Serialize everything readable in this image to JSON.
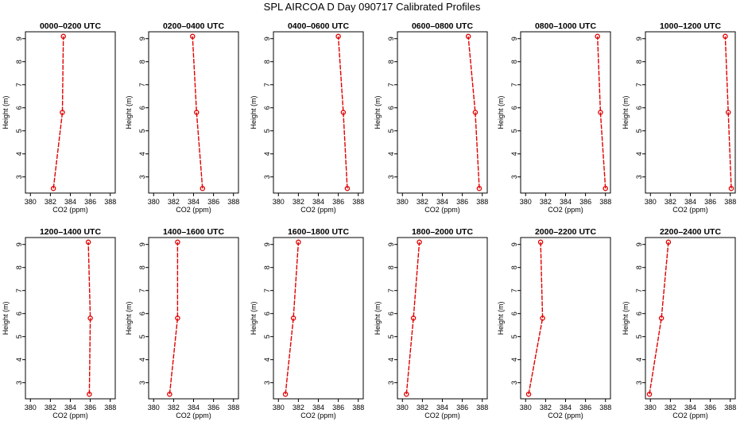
{
  "figure": {
    "title": "SPL AIRCOA D  Day 090717  Calibrated Profiles",
    "series_color": "#e00000"
  },
  "chart_data": [
    {
      "type": "line",
      "title": "0000–0200 UTC",
      "xlabel": "CO2 (ppm)",
      "ylabel": "Height (m)",
      "xlim": [
        379.5,
        388.5
      ],
      "ylim": [
        2.3,
        9.3
      ],
      "xticks": [
        380,
        382,
        384,
        386,
        388
      ],
      "yticks": [
        3,
        4,
        5,
        6,
        7,
        8,
        9
      ],
      "points": [
        {
          "x": 382.3,
          "y": 2.5
        },
        {
          "x": 383.2,
          "y": 5.8
        },
        {
          "x": 383.3,
          "y": 9.1
        }
      ]
    },
    {
      "type": "line",
      "title": "0200–0400 UTC",
      "xlabel": "CO2 (ppm)",
      "ylabel": "Height (m)",
      "xlim": [
        379.5,
        388.5
      ],
      "ylim": [
        2.3,
        9.3
      ],
      "xticks": [
        380,
        382,
        384,
        386,
        388
      ],
      "yticks": [
        3,
        4,
        5,
        6,
        7,
        8,
        9
      ],
      "points": [
        {
          "x": 384.9,
          "y": 2.5
        },
        {
          "x": 384.3,
          "y": 5.8
        },
        {
          "x": 383.9,
          "y": 9.1
        }
      ]
    },
    {
      "type": "line",
      "title": "0400–0600 UTC",
      "xlabel": "CO2 (ppm)",
      "ylabel": "Height (m)",
      "xlim": [
        379.5,
        388.5
      ],
      "ylim": [
        2.3,
        9.3
      ],
      "xticks": [
        380,
        382,
        384,
        386,
        388
      ],
      "yticks": [
        3,
        4,
        5,
        6,
        7,
        8,
        9
      ],
      "points": [
        {
          "x": 386.9,
          "y": 2.5
        },
        {
          "x": 386.5,
          "y": 5.8
        },
        {
          "x": 386.0,
          "y": 9.1
        }
      ]
    },
    {
      "type": "line",
      "title": "0600–0800 UTC",
      "xlabel": "CO2 (ppm)",
      "ylabel": "Height (m)",
      "xlim": [
        379.5,
        388.5
      ],
      "ylim": [
        2.3,
        9.3
      ],
      "xticks": [
        380,
        382,
        384,
        386,
        388
      ],
      "yticks": [
        3,
        4,
        5,
        6,
        7,
        8,
        9
      ],
      "points": [
        {
          "x": 387.7,
          "y": 2.5
        },
        {
          "x": 387.3,
          "y": 5.8
        },
        {
          "x": 386.6,
          "y": 9.1
        }
      ]
    },
    {
      "type": "line",
      "title": "0800–1000 UTC",
      "xlabel": "CO2 (ppm)",
      "ylabel": "Height (m)",
      "xlim": [
        379.5,
        388.5
      ],
      "ylim": [
        2.3,
        9.3
      ],
      "xticks": [
        380,
        382,
        384,
        386,
        388
      ],
      "yticks": [
        3,
        4,
        5,
        6,
        7,
        8,
        9
      ],
      "points": [
        {
          "x": 388.0,
          "y": 2.5
        },
        {
          "x": 387.5,
          "y": 5.8
        },
        {
          "x": 387.2,
          "y": 9.1
        }
      ]
    },
    {
      "type": "line",
      "title": "1000–1200 UTC",
      "xlabel": "CO2 (ppm)",
      "ylabel": "Height (m)",
      "xlim": [
        379.5,
        388.5
      ],
      "ylim": [
        2.3,
        9.3
      ],
      "xticks": [
        380,
        382,
        384,
        386,
        388
      ],
      "yticks": [
        3,
        4,
        5,
        6,
        7,
        8,
        9
      ],
      "points": [
        {
          "x": 388.1,
          "y": 2.5
        },
        {
          "x": 387.8,
          "y": 5.8
        },
        {
          "x": 387.5,
          "y": 9.1
        }
      ]
    },
    {
      "type": "line",
      "title": "1200–1400 UTC",
      "xlabel": "CO2 (ppm)",
      "ylabel": "Height (m)",
      "xlim": [
        379.5,
        388.5
      ],
      "ylim": [
        2.3,
        9.3
      ],
      "xticks": [
        380,
        382,
        384,
        386,
        388
      ],
      "yticks": [
        3,
        4,
        5,
        6,
        7,
        8,
        9
      ],
      "points": [
        {
          "x": 385.9,
          "y": 2.5
        },
        {
          "x": 386.0,
          "y": 5.8
        },
        {
          "x": 385.8,
          "y": 9.1
        }
      ]
    },
    {
      "type": "line",
      "title": "1400–1600 UTC",
      "xlabel": "CO2 (ppm)",
      "ylabel": "Height (m)",
      "xlim": [
        379.5,
        388.5
      ],
      "ylim": [
        2.3,
        9.3
      ],
      "xticks": [
        380,
        382,
        384,
        386,
        388
      ],
      "yticks": [
        3,
        4,
        5,
        6,
        7,
        8,
        9
      ],
      "points": [
        {
          "x": 381.6,
          "y": 2.5
        },
        {
          "x": 382.4,
          "y": 5.8
        },
        {
          "x": 382.4,
          "y": 9.1
        }
      ]
    },
    {
      "type": "line",
      "title": "1600–1800 UTC",
      "xlabel": "CO2 (ppm)",
      "ylabel": "Height (m)",
      "xlim": [
        379.5,
        388.5
      ],
      "ylim": [
        2.3,
        9.3
      ],
      "xticks": [
        380,
        382,
        384,
        386,
        388
      ],
      "yticks": [
        3,
        4,
        5,
        6,
        7,
        8,
        9
      ],
      "points": [
        {
          "x": 380.7,
          "y": 2.5
        },
        {
          "x": 381.5,
          "y": 5.8
        },
        {
          "x": 382.0,
          "y": 9.1
        }
      ]
    },
    {
      "type": "line",
      "title": "1800–2000 UTC",
      "xlabel": "CO2 (ppm)",
      "ylabel": "Height (m)",
      "xlim": [
        379.5,
        388.5
      ],
      "ylim": [
        2.3,
        9.3
      ],
      "xticks": [
        380,
        382,
        384,
        386,
        388
      ],
      "yticks": [
        3,
        4,
        5,
        6,
        7,
        8,
        9
      ],
      "points": [
        {
          "x": 380.4,
          "y": 2.5
        },
        {
          "x": 381.1,
          "y": 5.8
        },
        {
          "x": 381.7,
          "y": 9.1
        }
      ]
    },
    {
      "type": "line",
      "title": "2000–2200 UTC",
      "xlabel": "CO2 (ppm)",
      "ylabel": "Height (m)",
      "xlim": [
        379.5,
        388.5
      ],
      "ylim": [
        2.3,
        9.3
      ],
      "xticks": [
        380,
        382,
        384,
        386,
        388
      ],
      "yticks": [
        3,
        4,
        5,
        6,
        7,
        8,
        9
      ],
      "points": [
        {
          "x": 380.3,
          "y": 2.5
        },
        {
          "x": 381.7,
          "y": 5.8
        },
        {
          "x": 381.5,
          "y": 9.1
        }
      ]
    },
    {
      "type": "line",
      "title": "2200–2400 UTC",
      "xlabel": "CO2 (ppm)",
      "ylabel": "Height (m)",
      "xlim": [
        379.5,
        388.5
      ],
      "ylim": [
        2.3,
        9.3
      ],
      "xticks": [
        380,
        382,
        384,
        386,
        388
      ],
      "yticks": [
        3,
        4,
        5,
        6,
        7,
        8,
        9
      ],
      "points": [
        {
          "x": 379.9,
          "y": 2.5
        },
        {
          "x": 381.1,
          "y": 5.8
        },
        {
          "x": 381.8,
          "y": 9.1
        }
      ]
    }
  ]
}
